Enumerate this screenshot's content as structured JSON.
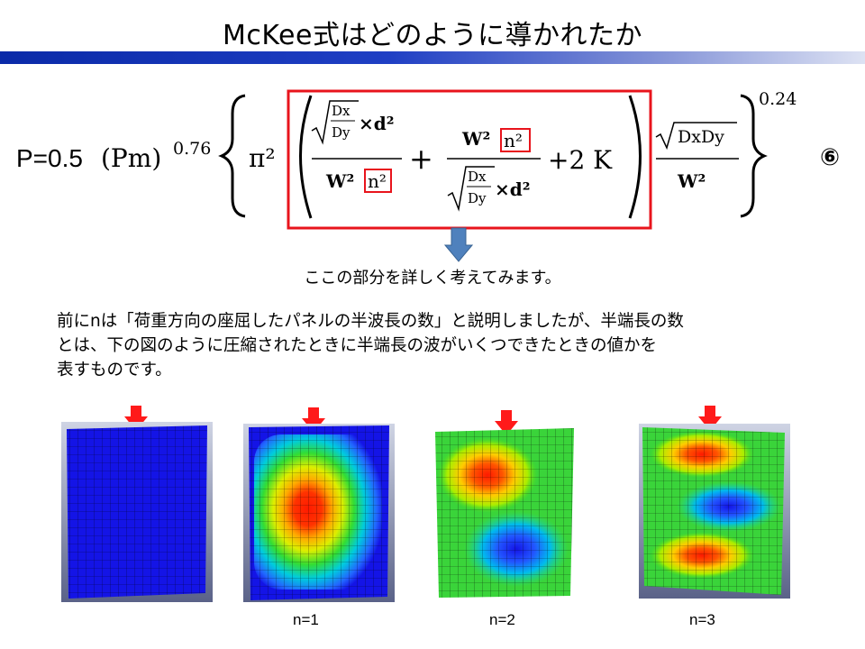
{
  "header": {
    "title": "McKee式はどのように導かれたか"
  },
  "formula": {
    "lhs": "P=0.5",
    "pm": "(Pm)",
    "pm_exp": "0.76",
    "pi2": "π²",
    "frac1_sqrt_num": "Dx",
    "frac1_sqrt_den": "Dy",
    "frac1_times_d2": "×d²",
    "frac1_den_w2": "W²",
    "frac1_den_n2": "n²",
    "plus": "+",
    "frac2_num_w2": "W²",
    "frac2_num_n2": "n²",
    "frac2_sqrt_num": "Dx",
    "frac2_sqrt_den": "Dy",
    "frac2_times_d2": "×d²",
    "plus2k": "+2 K",
    "frac3_num": "DxDy",
    "frac3_den": "W²",
    "outer_exp": "0.24",
    "equation_number": "⑥",
    "highlight_color": "#e8141c"
  },
  "annotation": {
    "arrow_color": "#4f81bd",
    "note": "ここの部分を詳しく考えてみます。"
  },
  "body": {
    "line1": "前にnは「荷重方向の座屈したパネルの半波長の数」と説明しましたが、半端長の数",
    "line2": "とは、下の図のように圧縮されたときに半端長の波がいくつできたときの値かを",
    "line3": "表すものです。"
  },
  "figures": [
    {
      "caption": ""
    },
    {
      "caption": "n=1"
    },
    {
      "caption": "n=2"
    },
    {
      "caption": "n=3"
    }
  ],
  "colors": {
    "load_arrow": "#ff1a1a",
    "mesh_base": "#1414e6"
  }
}
